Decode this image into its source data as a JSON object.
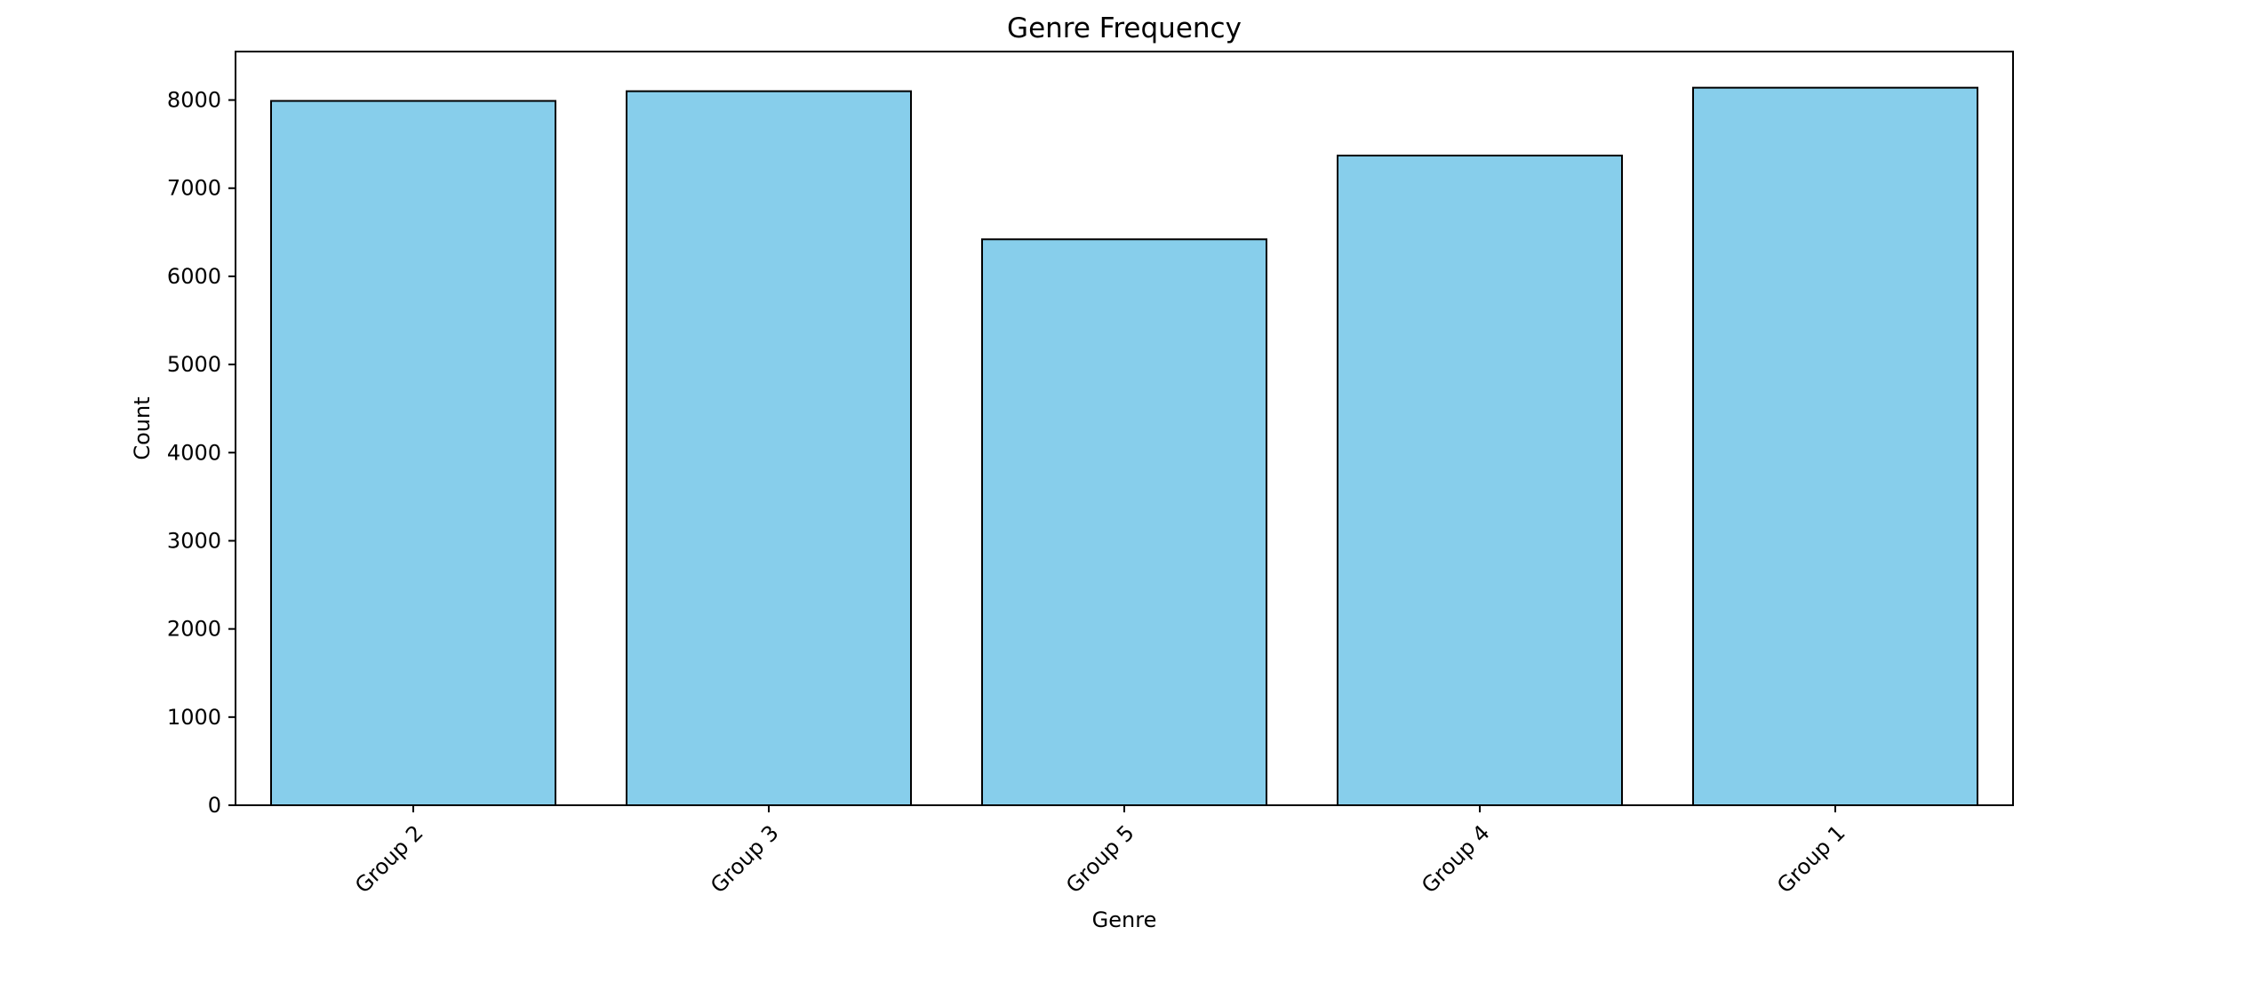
{
  "chart_data": {
    "type": "bar",
    "title": "Genre Frequency",
    "xlabel": "Genre",
    "ylabel": "Count",
    "categories": [
      "Group 2",
      "Group 3",
      "Group 5",
      "Group 4",
      "Group 1"
    ],
    "values": [
      7990,
      8100,
      6420,
      7370,
      8140
    ],
    "ylim": [
      0,
      8550
    ],
    "yticks": [
      0,
      1000,
      2000,
      3000,
      4000,
      5000,
      6000,
      7000,
      8000
    ],
    "ytick_labels": [
      "0",
      "1000",
      "2000",
      "3000",
      "4000",
      "5000",
      "6000",
      "7000",
      "8000"
    ],
    "xtick_rotation": "45",
    "grid": false,
    "legend": "none",
    "colors": {
      "bar_fill": "#87CEEB",
      "bar_edge": "#000000",
      "axes": "#000000",
      "background": "#ffffff"
    }
  }
}
